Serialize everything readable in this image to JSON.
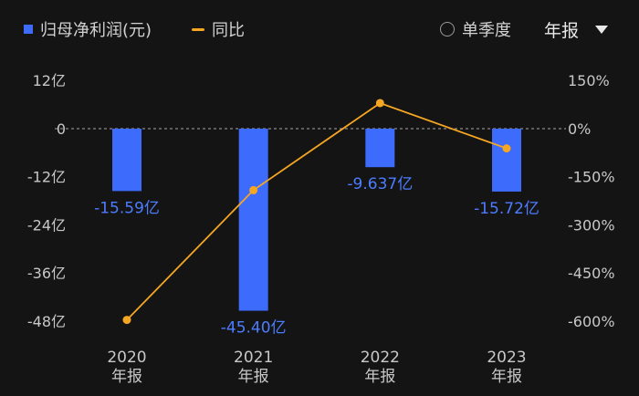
{
  "legend": {
    "bar_label": "归母净利润(元)",
    "line_label": "同比"
  },
  "controls": {
    "single_quarter_label": "单季度",
    "period_label": "年报"
  },
  "colors": {
    "bar": "#3d6bfb",
    "line": "#f5a623",
    "bar_label_text": "#4d7dff",
    "background": "#141414"
  },
  "chart_data": {
    "type": "bar",
    "categories": [
      [
        "2020",
        "年报"
      ],
      [
        "2021",
        "年报"
      ],
      [
        "2022",
        "年报"
      ],
      [
        "2023",
        "年报"
      ]
    ],
    "series": [
      {
        "name": "归母净利润(元)",
        "type": "bar",
        "axis": "left",
        "values": [
          -15.59,
          -45.4,
          -9.637,
          -15.72
        ],
        "value_labels": [
          "-15.59亿",
          "-45.40亿",
          "-9.637亿",
          "-15.72亿"
        ]
      },
      {
        "name": "同比",
        "type": "line",
        "axis": "right",
        "values": [
          -596,
          -192,
          79,
          -62
        ]
      }
    ],
    "left_axis": {
      "ticks": [
        12,
        0,
        -12,
        -24,
        -36,
        -48
      ],
      "tick_labels": [
        "12亿",
        "0",
        "-12亿",
        "-24亿",
        "-36亿",
        "-48亿"
      ],
      "range": [
        -48,
        12
      ]
    },
    "right_axis": {
      "ticks": [
        150,
        0,
        -150,
        -300,
        -450,
        -600
      ],
      "tick_labels": [
        "150%",
        "0%",
        "-150%",
        "-300%",
        "-450%",
        "-600%"
      ],
      "range": [
        -600,
        150
      ]
    },
    "zero_line": "dashed",
    "grid": false
  }
}
